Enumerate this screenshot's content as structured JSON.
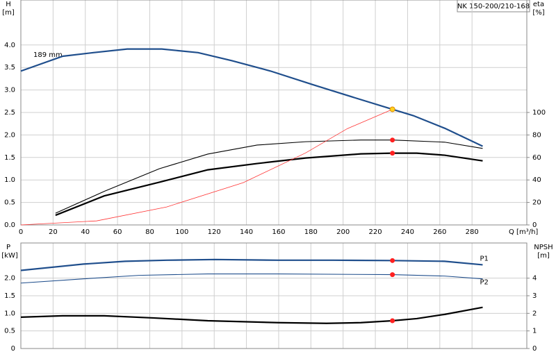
{
  "chart_data": [
    {
      "type": "line",
      "title": "NK 150-200/210-168",
      "annotations": [
        "189 mm"
      ],
      "ylabel": "H",
      "yunit": "[m]",
      "y2label": "eta",
      "y2unit": "[%]",
      "xlabel": "Q [m³/h]",
      "xlim": [
        0,
        314
      ],
      "xticks": [
        0,
        20,
        40,
        60,
        80,
        100,
        120,
        140,
        160,
        180,
        200,
        220,
        240,
        260,
        280
      ],
      "ylim": [
        0,
        5
      ],
      "yticks": [
        {
          "value": 0,
          "label": "0.0"
        },
        0.5,
        {
          "value": 1,
          "label": "1.0"
        },
        1.5,
        {
          "value": 2,
          "label": "2.0"
        },
        2.5,
        {
          "value": 3,
          "label": "3.0"
        },
        3.5,
        {
          "value": 4,
          "label": "4.0"
        }
      ],
      "y2lim": [
        0,
        200
      ],
      "y2ticks": [
        0,
        20,
        40,
        60,
        80,
        100
      ],
      "grid": true,
      "series": [
        {
          "color": "#1f4e8c",
          "style": "thick",
          "x": [
            0,
            26,
            45,
            66,
            87.5,
            110,
            131,
            155,
            181,
            207,
            230.6,
            243.5,
            263,
            286.6
          ],
          "values": [
            3.42,
            3.75,
            3.83,
            3.91,
            3.91,
            3.83,
            3.65,
            3.42,
            3.12,
            2.83,
            2.57,
            2.43,
            2.15,
            1.75
          ]
        },
        {
          "color": "#000000",
          "style": "thin",
          "axis": "y2",
          "x": [
            21.5,
            52,
            86,
            116,
            146.6,
            176.7,
            211,
            230.6,
            263,
            286.6
          ],
          "values": [
            10.4,
            30,
            50,
            63,
            71,
            74,
            75.5,
            75.5,
            73.6,
            68
          ]
        },
        {
          "color": "#000000",
          "style": "thick",
          "axis": "y2",
          "x": [
            21.5,
            51.7,
            86,
            116,
            146.6,
            176.7,
            211,
            230.6,
            245.7,
            263,
            286.6
          ],
          "values": [
            8.6,
            25.8,
            38,
            49,
            54.6,
            59.5,
            63.2,
            63.8,
            63.8,
            62,
            57
          ]
        },
        {
          "color": "#ff3333",
          "style": "hair",
          "x": [
            0,
            47,
            90.5,
            138,
            176.7,
            202.6,
            230.6
          ],
          "values": [
            0,
            0.09,
            0.4,
            0.94,
            1.6,
            2.14,
            2.57
          ]
        }
      ],
      "markers": [
        {
          "x": 230.6,
          "y": 2.57,
          "color": "#ffd21f"
        },
        {
          "x": 230.6,
          "y": 75.5,
          "axis": "y2",
          "color": "#ff2020"
        },
        {
          "x": 230.6,
          "y": 63.8,
          "axis": "y2",
          "color": "#ff2020"
        }
      ]
    },
    {
      "type": "line",
      "ylabel": "P",
      "yunit": "[kW]",
      "y2label": "NPSH",
      "y2unit": "[m]",
      "xlim": [
        0,
        314
      ],
      "xticks": [
        0,
        20,
        40,
        60,
        80,
        100,
        120,
        140,
        160,
        180,
        200,
        220,
        240,
        260,
        280
      ],
      "show_xtick_labels": false,
      "ylim": [
        0,
        3
      ],
      "yticks": [
        0,
        0.5,
        {
          "value": 1,
          "label": "1.0"
        },
        1.5,
        {
          "value": 2,
          "label": "2.0"
        }
      ],
      "y2lim": [
        0,
        6
      ],
      "y2ticks": [
        0,
        1,
        2,
        3,
        4
      ],
      "grid": true,
      "series": [
        {
          "name": "P1",
          "color": "#1f4e8c",
          "style": "thick",
          "x": [
            0,
            38.8,
            64.7,
            90.5,
            120.7,
            159.5,
            194,
            230.6,
            263,
            286.6
          ],
          "values": [
            2.22,
            2.4,
            2.48,
            2.51,
            2.53,
            2.51,
            2.51,
            2.5,
            2.48,
            2.38
          ]
        },
        {
          "name": "P2",
          "color": "#1f4e8c",
          "style": "thin",
          "x": [
            0,
            38.8,
            73.3,
            116,
            159.5,
            230.6,
            263,
            286.6
          ],
          "values": [
            1.86,
            1.98,
            2.08,
            2.12,
            2.12,
            2.1,
            2.06,
            1.98
          ]
        },
        {
          "color": "#000000",
          "style": "thick",
          "axis": "y2",
          "x": [
            0,
            25.9,
            51.7,
            82,
            116,
            159.5,
            189.7,
            211,
            230.6,
            245.7,
            263,
            286.6
          ],
          "values": [
            1.78,
            1.86,
            1.86,
            1.74,
            1.58,
            1.47,
            1.43,
            1.47,
            1.58,
            1.7,
            1.94,
            2.34
          ]
        }
      ],
      "markers": [
        {
          "x": 230.6,
          "y": 2.5,
          "color": "#ff2020"
        },
        {
          "x": 230.6,
          "y": 2.1,
          "color": "#ff2020"
        },
        {
          "x": 230.6,
          "y": 1.58,
          "axis": "y2",
          "color": "#ff2020"
        }
      ]
    }
  ]
}
